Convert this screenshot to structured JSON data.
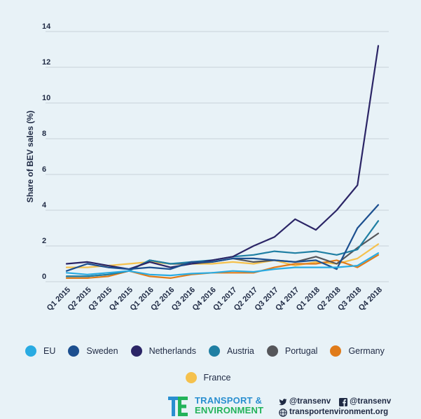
{
  "chart_data": {
    "type": "line",
    "ylabel": "Share of BEV sales (%)",
    "xlabel": "",
    "ylim": [
      0,
      14
    ],
    "yticks": [
      0,
      2,
      4,
      6,
      8,
      10,
      12,
      14
    ],
    "grid": true,
    "categories": [
      "Q1 2015",
      "Q2 2015",
      "Q3 2015",
      "Q4 2015",
      "Q1 2016",
      "Q2 2016",
      "Q3 2016",
      "Q4 2016",
      "Q1 2017",
      "Q2 2017",
      "Q3 2017",
      "Q4 2017",
      "Q1 2018",
      "Q2 2018",
      "Q3 2018",
      "Q4 2018"
    ],
    "legend_position": "bottom",
    "series": [
      {
        "name": "EU",
        "color": "#29abe2",
        "values": [
          0.5,
          0.4,
          0.5,
          0.6,
          0.4,
          0.35,
          0.45,
          0.5,
          0.6,
          0.55,
          0.7,
          0.8,
          0.8,
          0.8,
          0.9,
          1.6
        ]
      },
      {
        "name": "Sweden",
        "color": "#1c4f8f",
        "values": [
          0.6,
          1.0,
          0.8,
          0.7,
          0.8,
          0.7,
          1.1,
          1.1,
          1.3,
          1.3,
          1.2,
          1.1,
          1.2,
          0.7,
          3.0,
          4.3
        ]
      },
      {
        "name": "Netherlands",
        "color": "#2b2566",
        "values": [
          1.0,
          1.1,
          0.9,
          0.7,
          1.1,
          0.8,
          1.0,
          1.2,
          1.4,
          2.0,
          2.5,
          3.5,
          2.9,
          4.0,
          5.4,
          13.2
        ]
      },
      {
        "name": "Austria",
        "color": "#1f7fa3",
        "values": [
          0.3,
          0.3,
          0.4,
          0.6,
          1.2,
          1.0,
          1.1,
          1.2,
          1.4,
          1.5,
          1.7,
          1.6,
          1.7,
          1.5,
          1.8,
          3.4
        ]
      },
      {
        "name": "Portugal",
        "color": "#55565a",
        "values": [
          0.3,
          0.3,
          0.4,
          0.6,
          1.2,
          1.0,
          1.0,
          1.1,
          1.3,
          1.1,
          1.2,
          1.1,
          1.4,
          1.0,
          1.9,
          2.7
        ]
      },
      {
        "name": "Germany",
        "color": "#e07b1a",
        "values": [
          0.2,
          0.2,
          0.3,
          0.6,
          0.3,
          0.2,
          0.4,
          0.5,
          0.5,
          0.5,
          0.8,
          1.0,
          1.0,
          1.2,
          0.8,
          1.5
        ]
      },
      {
        "name": "France",
        "color": "#f5c14d",
        "values": [
          0.8,
          0.8,
          0.9,
          1.0,
          1.1,
          1.0,
          1.0,
          1.0,
          1.1,
          1.0,
          1.2,
          0.9,
          1.1,
          1.0,
          1.3,
          2.1
        ]
      }
    ]
  },
  "footer": {
    "org_line1": "TRANSPORT &",
    "org_line2": "ENVIRONMENT",
    "twitter": "@transenv",
    "facebook": "@transenv",
    "website": "transportenvironment.org"
  }
}
